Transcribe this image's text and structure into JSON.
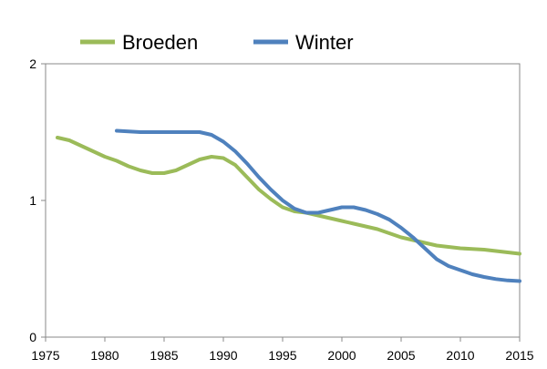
{
  "chart_data": {
    "type": "line",
    "title": "",
    "xlabel": "",
    "ylabel": "",
    "xlim": [
      1975,
      2015
    ],
    "ylim": [
      0,
      2
    ],
    "x_ticks": [
      1975,
      1980,
      1985,
      1990,
      1995,
      2000,
      2005,
      2010,
      2015
    ],
    "y_ticks": [
      0,
      1,
      2
    ],
    "grid": false,
    "legend": {
      "position": "top-left",
      "orientation": "horizontal"
    },
    "series": [
      {
        "name": "Broeden",
        "color": "#9BBB59",
        "x": [
          1976,
          1977,
          1978,
          1979,
          1980,
          1981,
          1982,
          1983,
          1984,
          1985,
          1986,
          1987,
          1988,
          1989,
          1990,
          1991,
          1992,
          1993,
          1994,
          1995,
          1996,
          1997,
          1998,
          1999,
          2000,
          2001,
          2002,
          2003,
          2004,
          2005,
          2006,
          2007,
          2008,
          2009,
          2010,
          2011,
          2012,
          2013,
          2014,
          2015
        ],
        "y": [
          1.46,
          1.44,
          1.4,
          1.36,
          1.32,
          1.29,
          1.25,
          1.22,
          1.2,
          1.2,
          1.22,
          1.26,
          1.3,
          1.32,
          1.31,
          1.26,
          1.17,
          1.08,
          1.01,
          0.95,
          0.92,
          0.91,
          0.89,
          0.87,
          0.85,
          0.83,
          0.81,
          0.79,
          0.76,
          0.73,
          0.71,
          0.69,
          0.67,
          0.66,
          0.65,
          0.645,
          0.64,
          0.63,
          0.62,
          0.61
        ]
      },
      {
        "name": "Winter",
        "color": "#4F81BD",
        "x": [
          1981,
          1982,
          1983,
          1984,
          1985,
          1986,
          1987,
          1988,
          1989,
          1990,
          1991,
          1992,
          1993,
          1994,
          1995,
          1996,
          1997,
          1998,
          1999,
          2000,
          2001,
          2002,
          2003,
          2004,
          2005,
          2006,
          2007,
          2008,
          2009,
          2010,
          2011,
          2012,
          2013,
          2014,
          2015
        ],
        "y": [
          1.51,
          1.505,
          1.5,
          1.5,
          1.5,
          1.5,
          1.5,
          1.5,
          1.48,
          1.43,
          1.36,
          1.27,
          1.17,
          1.08,
          1.0,
          0.94,
          0.91,
          0.91,
          0.93,
          0.95,
          0.95,
          0.93,
          0.9,
          0.86,
          0.8,
          0.73,
          0.65,
          0.57,
          0.52,
          0.49,
          0.46,
          0.44,
          0.425,
          0.415,
          0.41
        ]
      }
    ]
  }
}
